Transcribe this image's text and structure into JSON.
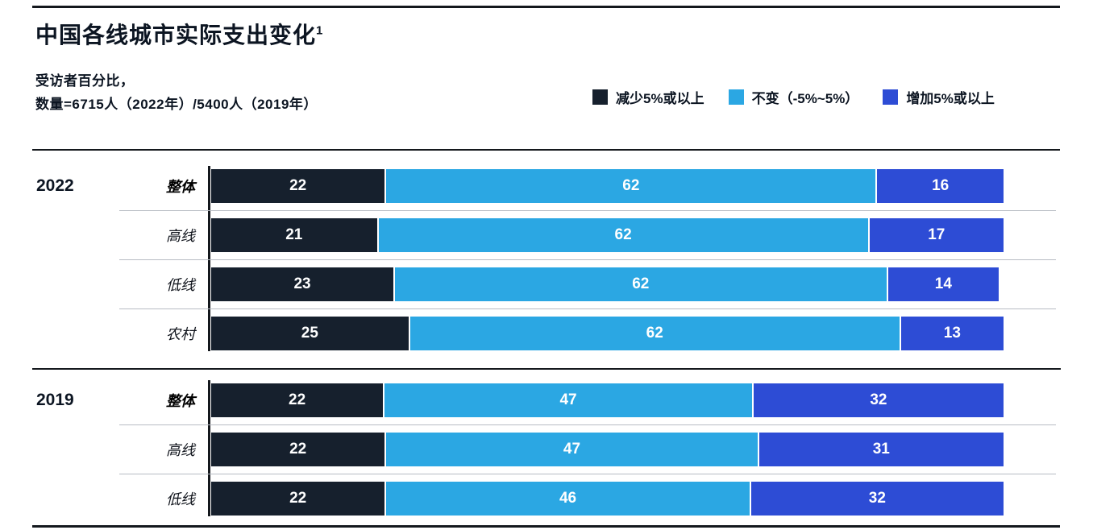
{
  "title": "中国各线城市实际支出变化",
  "title_superscript": "1",
  "subtitle": {
    "line1": "受访者百分比，",
    "line2": "数量=6715人（2022年）/5400人（2019年）"
  },
  "colors": {
    "decrease": "#16202d",
    "unchanged": "#2ba7e3",
    "increase": "#2d4cd5",
    "text_dark": "#0c1522",
    "rule_dark": "#14181d",
    "separator_light": "#b7bcc3",
    "bar_value_text": "#ffffff"
  },
  "legend": [
    {
      "label": "减少5%或以上",
      "color": "#16202d"
    },
    {
      "label": "不变（-5%~5%）",
      "color": "#2ba7e3"
    },
    {
      "label": "增加5%或以上",
      "color": "#2d4cd5"
    }
  ],
  "chart_data": {
    "type": "bar",
    "stacked": true,
    "orientation": "horizontal",
    "unit": "percent of respondents",
    "xlim": [
      0,
      100
    ],
    "grid": false,
    "legend_position": "top-right",
    "series_names": [
      "减少5%或以上",
      "不变（-5%~5%）",
      "增加5%或以上"
    ],
    "groups": [
      {
        "year": "2022",
        "rows": [
          {
            "label": "整体",
            "bold": true,
            "values": [
              22,
              62,
              16
            ]
          },
          {
            "label": "高线",
            "bold": false,
            "values": [
              21,
              62,
              17
            ]
          },
          {
            "label": "低线",
            "bold": false,
            "values": [
              23,
              62,
              14
            ]
          },
          {
            "label": "农村",
            "bold": false,
            "values": [
              25,
              62,
              13
            ]
          }
        ]
      },
      {
        "year": "2019",
        "rows": [
          {
            "label": "整体",
            "bold": true,
            "values": [
              22,
              47,
              32
            ]
          },
          {
            "label": "高线",
            "bold": false,
            "values": [
              22,
              47,
              31
            ]
          },
          {
            "label": "低线",
            "bold": false,
            "values": [
              22,
              46,
              32
            ]
          }
        ]
      }
    ]
  }
}
